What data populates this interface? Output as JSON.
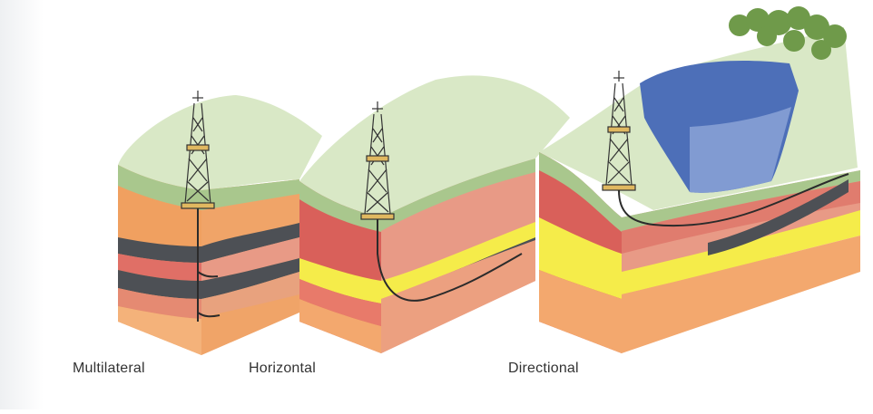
{
  "diagram": {
    "labels": {
      "multilateral": "Multilateral",
      "horizontal": "Horizontal",
      "directional": "Directional"
    },
    "colors": {
      "surface": "#d9e8c6",
      "soil": "#a9c78d",
      "orange_layer": "#f0a060",
      "pink_layer": "#e89a86",
      "red_layer": "#d9605a",
      "yellow_layer": "#f5ec4a",
      "shale": "#4d5055",
      "water": "#4d6fb8",
      "trees": "#6f9a4a",
      "well": "#2b2b2b"
    }
  }
}
